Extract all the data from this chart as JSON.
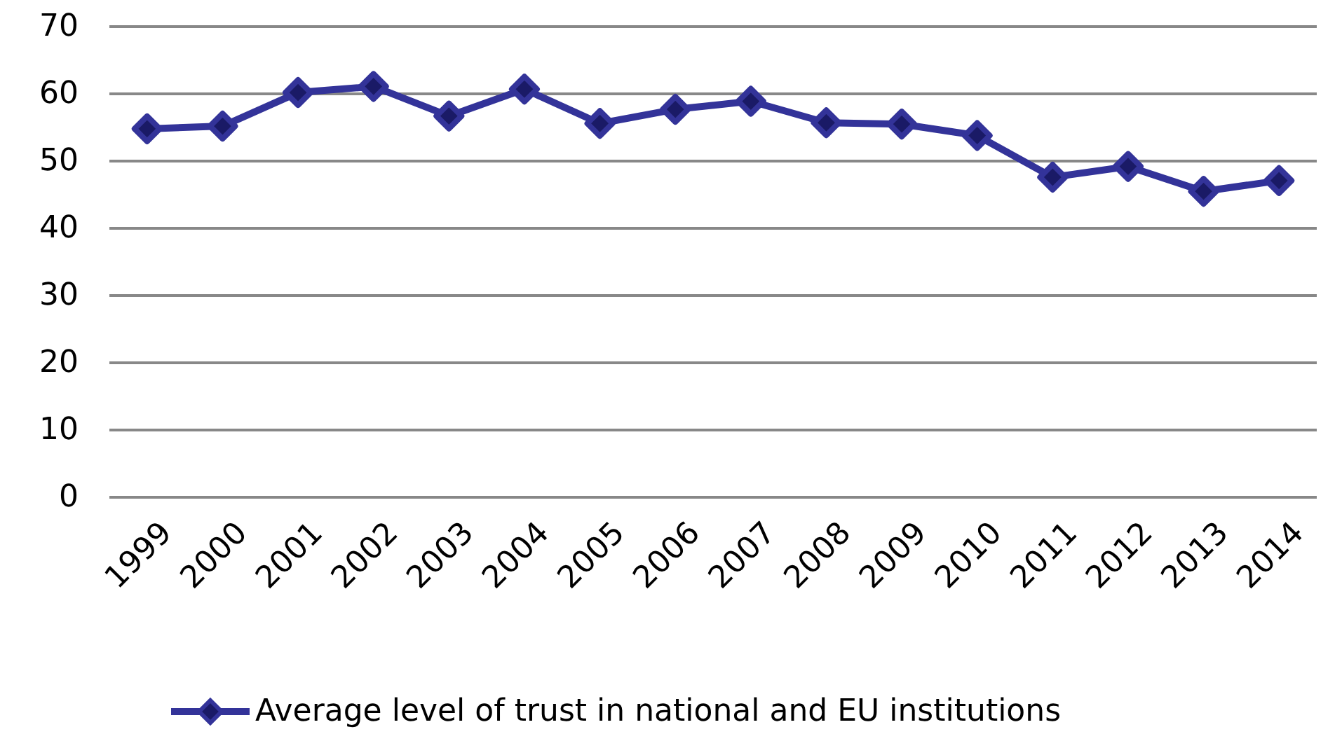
{
  "chart_data": {
    "type": "line",
    "categories": [
      "1999",
      "2000",
      "2001",
      "2002",
      "2003",
      "2004",
      "2005",
      "2006",
      "2007",
      "2008",
      "2009",
      "2010",
      "2011",
      "2012",
      "2013",
      "2014"
    ],
    "series": [
      {
        "name": "Average level of trust in national and EU institutions",
        "color": "#333399",
        "values": [
          54.8,
          55.2,
          60.2,
          61.1,
          56.7,
          60.7,
          55.6,
          57.7,
          58.9,
          55.7,
          55.5,
          53.8,
          47.6,
          49.2,
          45.5,
          47.1
        ]
      }
    ],
    "ylim": [
      0,
      70
    ],
    "yticks": [
      0,
      10,
      20,
      30,
      40,
      50,
      60,
      70
    ],
    "grid": "y",
    "legend": "bottom",
    "marker": "diamond",
    "line_style": "solid"
  }
}
